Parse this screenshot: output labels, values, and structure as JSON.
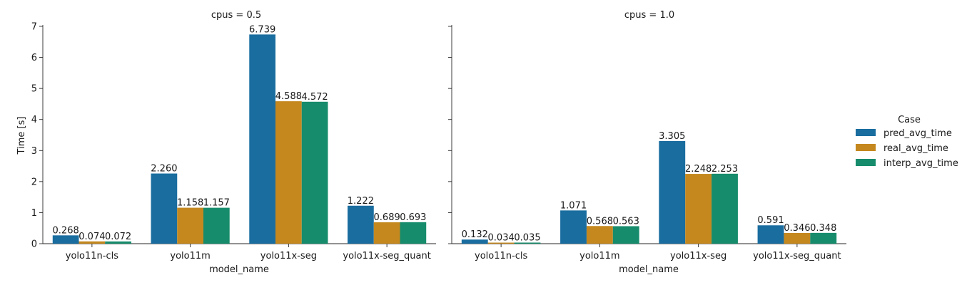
{
  "chart_data": [
    {
      "type": "bar",
      "title": "cpus = 0.5",
      "xlabel": "model_name",
      "ylabel": "Time [s]",
      "ylim": [
        0,
        7
      ],
      "yticks": [
        0,
        1,
        2,
        3,
        4,
        5,
        6,
        7
      ],
      "categories": [
        "yolo11n-cls",
        "yolo11m",
        "yolo11x-seg",
        "yolo11x-seg_quant"
      ],
      "series": [
        {
          "name": "pred_avg_time",
          "values": [
            0.268,
            2.26,
            6.739,
            1.222
          ],
          "labels": [
            "0.268",
            "2.260",
            "6.739",
            "1.222"
          ]
        },
        {
          "name": "real_avg_time",
          "values": [
            0.074,
            1.158,
            4.588,
            0.689
          ],
          "labels": [
            "0.074",
            "1.158",
            "4.588",
            "0.689"
          ]
        },
        {
          "name": "interp_avg_time",
          "values": [
            0.072,
            1.157,
            4.572,
            0.693
          ],
          "labels": [
            "0.072",
            "1.157",
            "4.572",
            "0.693"
          ]
        }
      ]
    },
    {
      "type": "bar",
      "title": "cpus = 1.0",
      "xlabel": "model_name",
      "ylabel": "",
      "ylim": [
        0,
        7
      ],
      "yticks": [
        0,
        1,
        2,
        3,
        4,
        5,
        6,
        7
      ],
      "categories": [
        "yolo11n-cls",
        "yolo11m",
        "yolo11x-seg",
        "yolo11x-seg_quant"
      ],
      "series": [
        {
          "name": "pred_avg_time",
          "values": [
            0.132,
            1.071,
            3.305,
            0.591
          ],
          "labels": [
            "0.132",
            "1.071",
            "3.305",
            "0.591"
          ]
        },
        {
          "name": "real_avg_time",
          "values": [
            0.034,
            0.568,
            2.248,
            0.346
          ],
          "labels": [
            "0.034",
            "0.568",
            "2.248",
            "0.346"
          ]
        },
        {
          "name": "interp_avg_time",
          "values": [
            0.035,
            0.563,
            2.253,
            0.348
          ],
          "labels": [
            "0.035",
            "0.563",
            "2.253",
            "0.348"
          ]
        }
      ]
    }
  ],
  "legend": {
    "title": "Case",
    "placement": "right",
    "items": [
      "pred_avg_time",
      "real_avg_time",
      "interp_avg_time"
    ]
  },
  "colors": {
    "pred_avg_time": "#1a6d9f",
    "real_avg_time": "#c4881f",
    "interp_avg_time": "#178c6c"
  }
}
